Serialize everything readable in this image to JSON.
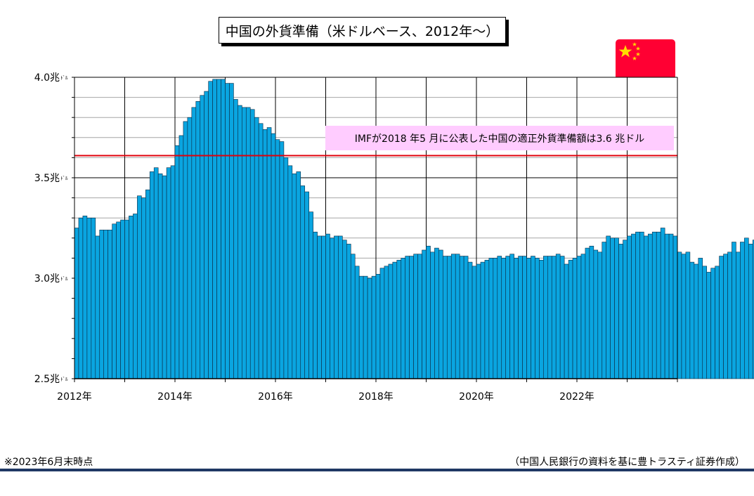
{
  "title": "中国の外貨準備（米ドルベース、2012年～）",
  "flag_icon": "china-flag-icon",
  "colors": {
    "bar": "#0aa5e0",
    "bar_edge": "#0b2a44",
    "reference_line": "#e0000b",
    "annotation_bg": "#ffccff",
    "rule": "#1f3864"
  },
  "annotation": "IMFが2018 年5 月に公表した中国の適正外貨準備額は3.6 兆ドル",
  "footnote": "※2023年6月末時点",
  "source": "（中国人民銀行の資料を基に豊トラスティ証券作成）",
  "chart_data": {
    "type": "bar",
    "y_unit": "兆ﾄﾞﾙ",
    "ylim": [
      2.5,
      4.0
    ],
    "yticks": [
      "2.5",
      "3.0",
      "3.5",
      "4.0"
    ],
    "xticks": [
      "2012年",
      "2014年",
      "2016年",
      "2018年",
      "2020年",
      "2022年"
    ],
    "x_range": [
      "2012-01",
      "2023-12"
    ],
    "first_period": "2012-01",
    "grid": true,
    "reference_value": 3.61,
    "values": [
      3.25,
      3.3,
      3.31,
      3.3,
      3.3,
      3.21,
      3.24,
      3.24,
      3.24,
      3.27,
      3.28,
      3.29,
      3.29,
      3.31,
      3.32,
      3.41,
      3.4,
      3.44,
      3.53,
      3.55,
      3.52,
      3.51,
      3.55,
      3.56,
      3.66,
      3.71,
      3.78,
      3.8,
      3.85,
      3.88,
      3.91,
      3.93,
      3.98,
      3.99,
      3.99,
      3.99,
      3.97,
      3.97,
      3.89,
      3.86,
      3.85,
      3.85,
      3.84,
      3.8,
      3.77,
      3.74,
      3.75,
      3.72,
      3.69,
      3.68,
      3.6,
      3.56,
      3.52,
      3.53,
      3.46,
      3.43,
      3.33,
      3.23,
      3.21,
      3.21,
      3.22,
      3.2,
      3.21,
      3.21,
      3.19,
      3.17,
      3.12,
      3.06,
      3.01,
      3.01,
      3.0,
      3.01,
      3.02,
      3.05,
      3.06,
      3.07,
      3.08,
      3.09,
      3.1,
      3.11,
      3.11,
      3.12,
      3.12,
      3.14,
      3.16,
      3.13,
      3.15,
      3.14,
      3.11,
      3.11,
      3.12,
      3.12,
      3.11,
      3.11,
      3.08,
      3.06,
      3.07,
      3.08,
      3.09,
      3.1,
      3.1,
      3.11,
      3.1,
      3.11,
      3.12,
      3.1,
      3.11,
      3.11,
      3.1,
      3.11,
      3.1,
      3.09,
      3.11,
      3.11,
      3.11,
      3.12,
      3.11,
      3.07,
      3.09,
      3.1,
      3.11,
      3.12,
      3.15,
      3.16,
      3.14,
      3.13,
      3.18,
      3.21,
      3.2,
      3.2,
      3.17,
      3.19,
      3.21,
      3.22,
      3.23,
      3.23,
      3.21,
      3.22,
      3.23,
      3.23,
      3.25,
      3.22,
      3.22,
      3.21,
      3.13,
      3.12,
      3.13,
      3.08,
      3.07,
      3.1,
      3.06,
      3.03,
      3.05,
      3.06,
      3.11,
      3.12,
      3.13,
      3.18,
      3.13,
      3.18,
      3.2,
      3.17,
      3.19
    ]
  }
}
